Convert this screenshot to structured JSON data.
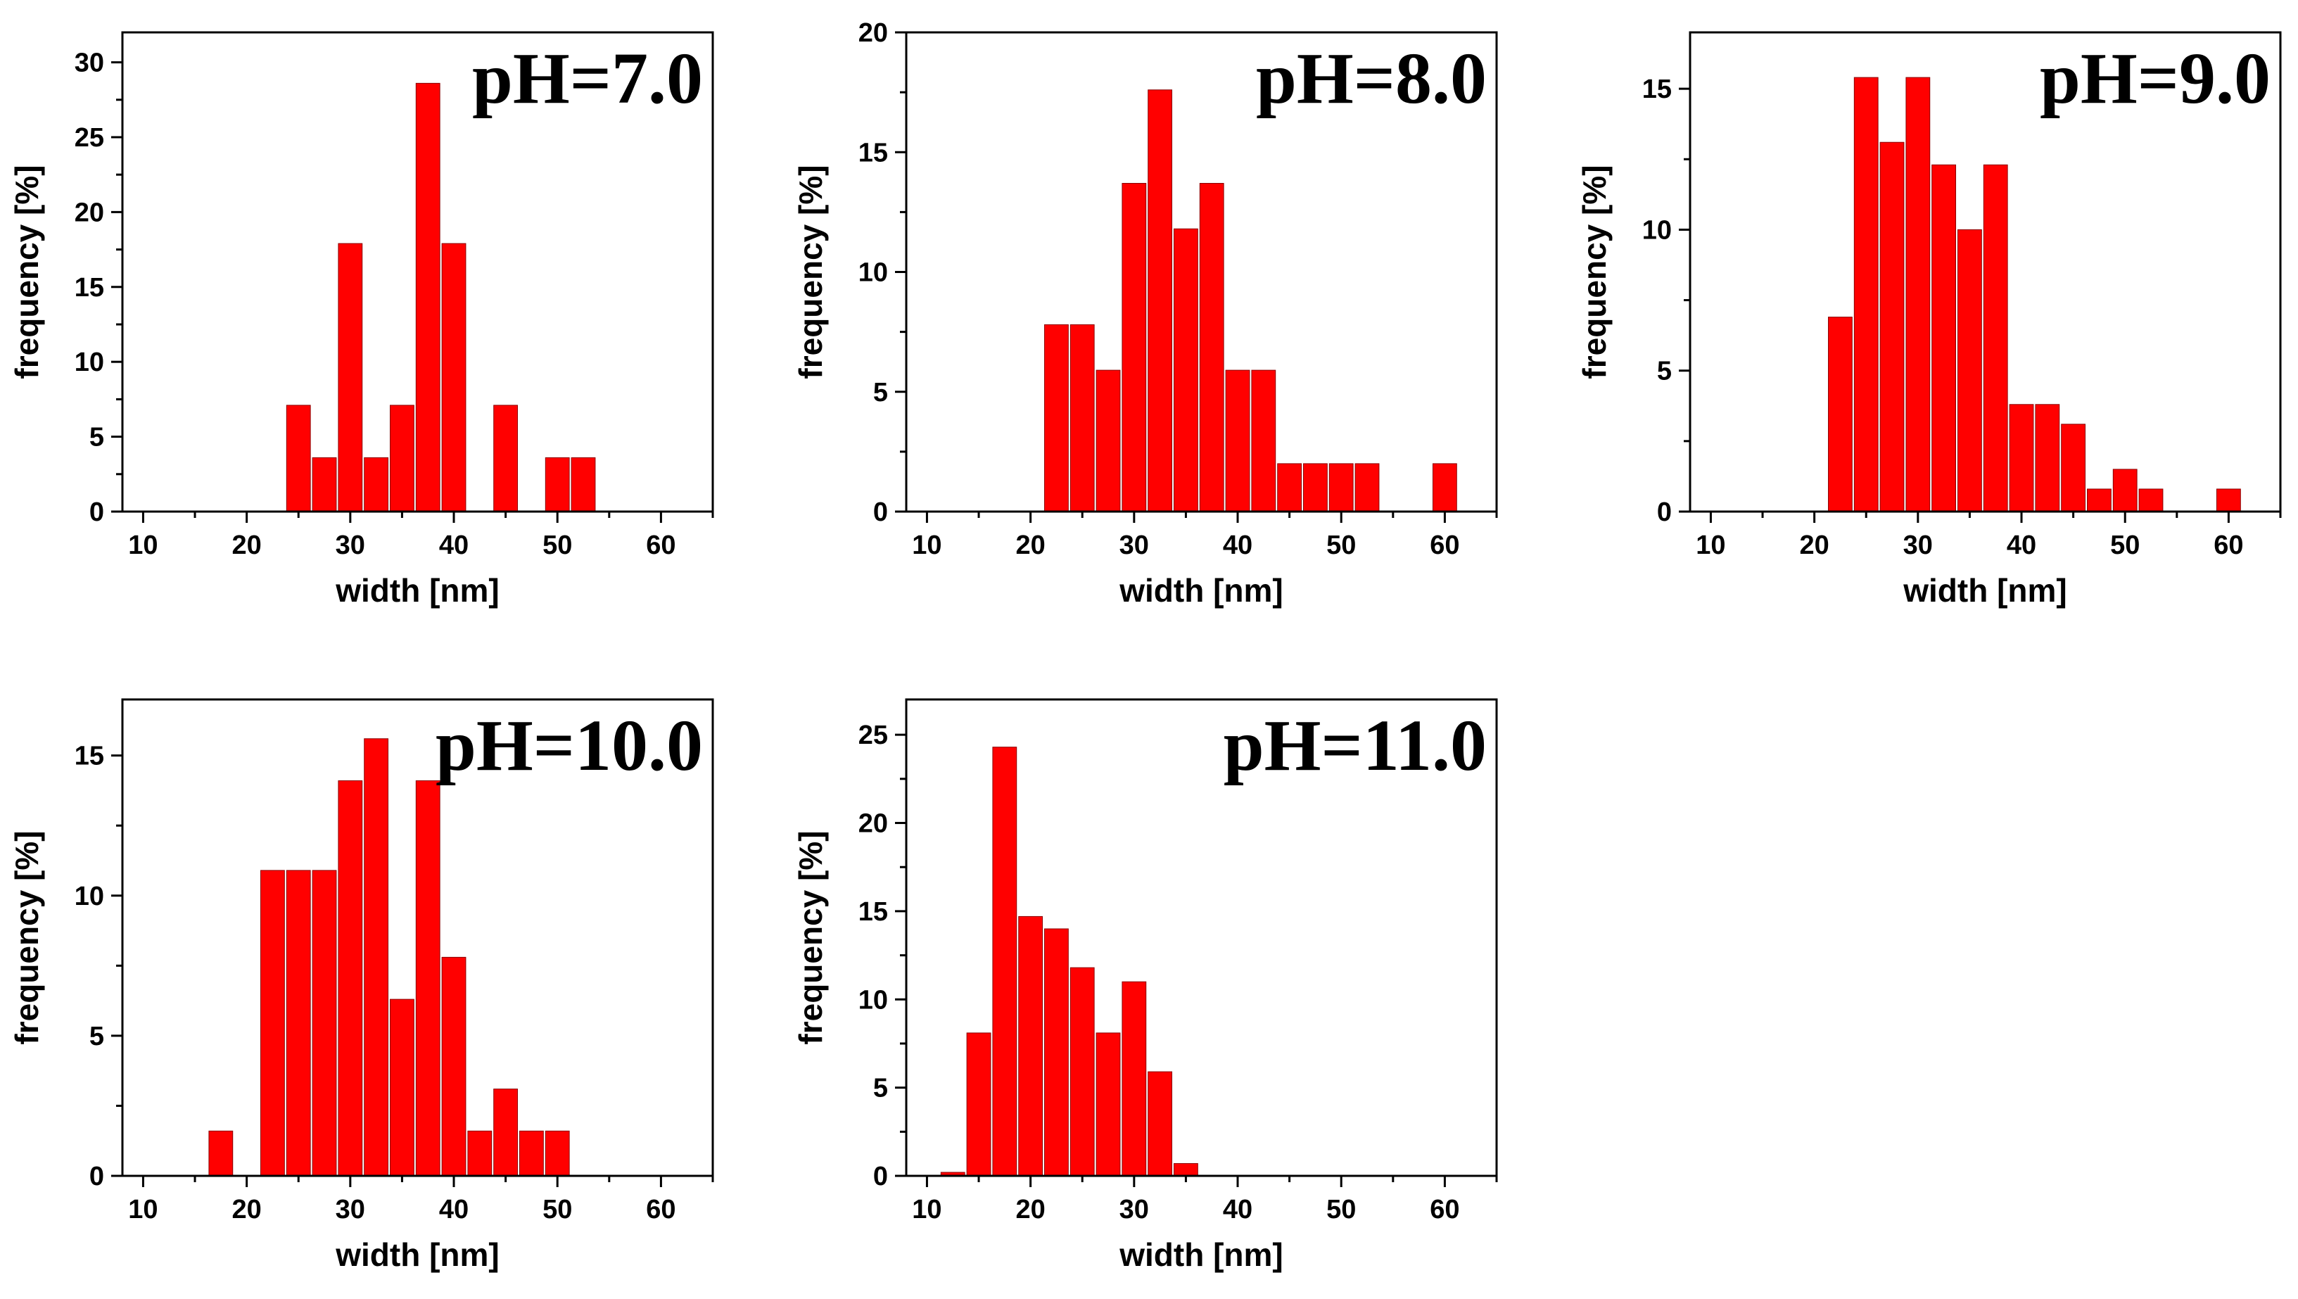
{
  "figure": {
    "background": "#ffffff",
    "bar_color": "#ff0000",
    "bar_edge_color": "#8a0000",
    "axis_color": "#000000"
  },
  "chart_data": [
    {
      "type": "bar",
      "title": "pH=7.0",
      "xlabel": "width [nm]",
      "ylabel": "frequency [%]",
      "xlim": [
        8,
        65
      ],
      "ylim": [
        0,
        32
      ],
      "xticks": [
        10,
        20,
        30,
        40,
        50,
        60
      ],
      "yticks": [
        0,
        5,
        10,
        15,
        20,
        25,
        30
      ],
      "bin_width": 2.5,
      "x": [
        25,
        27.5,
        30,
        32.5,
        35,
        37.5,
        40,
        42.5,
        45,
        47.5,
        50,
        52.5
      ],
      "values": [
        7.1,
        3.6,
        17.9,
        3.6,
        7.1,
        28.6,
        17.9,
        0,
        7.1,
        0,
        3.6,
        3.6
      ]
    },
    {
      "type": "bar",
      "title": "pH=8.0",
      "xlabel": "width [nm]",
      "ylabel": "frequency [%]",
      "xlim": [
        8,
        65
      ],
      "ylim": [
        0,
        20
      ],
      "xticks": [
        10,
        20,
        30,
        40,
        50,
        60
      ],
      "yticks": [
        0,
        5,
        10,
        15,
        20
      ],
      "bin_width": 2.5,
      "x": [
        22.5,
        25,
        27.5,
        30,
        32.5,
        35,
        37.5,
        40,
        42.5,
        45,
        47.5,
        50,
        52.5,
        55,
        57.5,
        60
      ],
      "values": [
        7.8,
        7.8,
        5.9,
        13.7,
        17.6,
        11.8,
        13.7,
        5.9,
        5.9,
        2.0,
        2.0,
        2.0,
        2.0,
        0,
        0,
        2.0
      ]
    },
    {
      "type": "bar",
      "title": "pH=9.0",
      "xlabel": "width [nm]",
      "ylabel": "frequency [%]",
      "xlim": [
        8,
        65
      ],
      "ylim": [
        0,
        17
      ],
      "xticks": [
        10,
        20,
        30,
        40,
        50,
        60
      ],
      "yticks": [
        0,
        5,
        10,
        15
      ],
      "bin_width": 2.5,
      "x": [
        22.5,
        25,
        27.5,
        30,
        32.5,
        35,
        37.5,
        40,
        42.5,
        45,
        47.5,
        50,
        52.5,
        55,
        57.5,
        60
      ],
      "values": [
        6.9,
        15.4,
        13.1,
        15.4,
        12.3,
        10.0,
        12.3,
        3.8,
        3.8,
        3.1,
        0.8,
        1.5,
        0.8,
        0,
        0,
        0.8
      ]
    },
    {
      "type": "bar",
      "title": "pH=10.0",
      "xlabel": "width [nm]",
      "ylabel": "frequency [%]",
      "xlim": [
        8,
        65
      ],
      "ylim": [
        0,
        17
      ],
      "xticks": [
        10,
        20,
        30,
        40,
        50,
        60
      ],
      "yticks": [
        0,
        5,
        10,
        15
      ],
      "bin_width": 2.5,
      "x": [
        17.5,
        20,
        22.5,
        25,
        27.5,
        30,
        32.5,
        35,
        37.5,
        40,
        42.5,
        45,
        47.5,
        50
      ],
      "values": [
        1.6,
        0,
        10.9,
        10.9,
        10.9,
        14.1,
        15.6,
        6.3,
        14.1,
        7.8,
        1.6,
        3.1,
        1.6,
        1.6
      ]
    },
    {
      "type": "bar",
      "title": "pH=11.0",
      "xlabel": "width [nm]",
      "ylabel": "frequency [%]",
      "xlim": [
        8,
        65
      ],
      "ylim": [
        0,
        27
      ],
      "xticks": [
        10,
        20,
        30,
        40,
        50,
        60
      ],
      "yticks": [
        0,
        5,
        10,
        15,
        20,
        25
      ],
      "bin_width": 2.5,
      "x": [
        12.5,
        15,
        17.5,
        20,
        22.5,
        25,
        27.5,
        30,
        32.5,
        35
      ],
      "values": [
        0.2,
        8.1,
        24.3,
        14.7,
        14.0,
        11.8,
        8.1,
        11.0,
        5.9,
        0.7
      ]
    }
  ]
}
